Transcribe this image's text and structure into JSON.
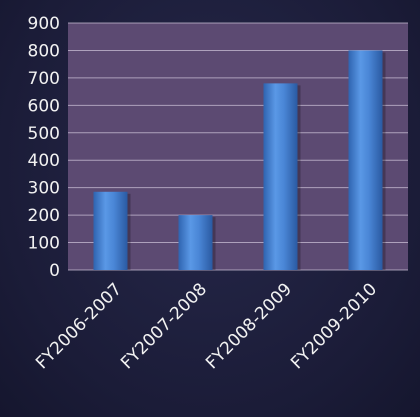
{
  "chart_data": {
    "type": "bar",
    "title": "",
    "xlabel": "",
    "ylabel": "",
    "categories": [
      "FY2006-2007",
      "FY2007-2008",
      "FY2008-2009",
      "FY2009-2010"
    ],
    "values": [
      285,
      200,
      680,
      800
    ],
    "ylim": [
      0,
      900
    ],
    "yticks": [
      "0",
      "100",
      "200",
      "300",
      "400",
      "500",
      "600",
      "700",
      "800",
      "900"
    ],
    "grid": true,
    "legend": "none",
    "colors": {
      "bar": "#4a86d6",
      "plot_background": "#5c4a72",
      "grid": "#c9bfd6",
      "text": "#f2f2f2"
    }
  }
}
